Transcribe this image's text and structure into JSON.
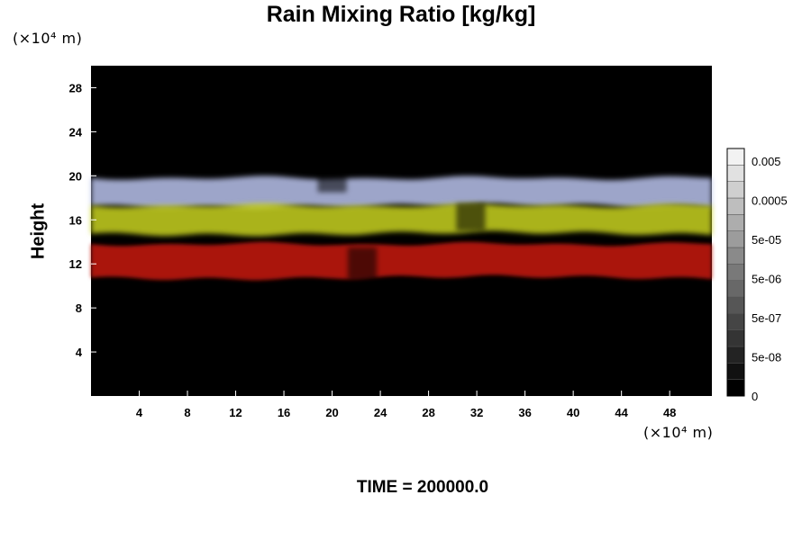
{
  "chart_data": {
    "type": "heatmap",
    "title": "Rain Mixing Ratio [kg/kg]",
    "ylabel": "Height",
    "xlabel": "",
    "y_unit_label": "(×10⁴ m)",
    "x_unit_label": "(×10⁴ m)",
    "footer": "TIME = 200000.0",
    "xlim": [
      0,
      51.5
    ],
    "ylim": [
      0,
      30
    ],
    "x_ticks": [
      "4",
      "8",
      "12",
      "16",
      "20",
      "24",
      "28",
      "32",
      "36",
      "40",
      "44",
      "48"
    ],
    "y_ticks": [
      "4",
      "8",
      "12",
      "16",
      "20",
      "24",
      "28"
    ],
    "colorbar": {
      "levels": 15,
      "labels": [
        "0.005",
        "0.0005",
        "5e-05",
        "5e-06",
        "5e-07",
        "5e-08",
        "0"
      ],
      "colors": {
        "min": "#000000",
        "max": "#f2f2f2"
      }
    },
    "layers": [
      {
        "name": "upper",
        "color": "#b8c2ec",
        "y_range": [
          17,
          20
        ]
      },
      {
        "name": "middle",
        "color": "#c8d21e",
        "y_range": [
          14.5,
          17.5
        ]
      },
      {
        "name": "lower",
        "color": "#c81a10",
        "y_range": [
          10.5,
          14
        ]
      }
    ],
    "background_color": "#000000"
  }
}
